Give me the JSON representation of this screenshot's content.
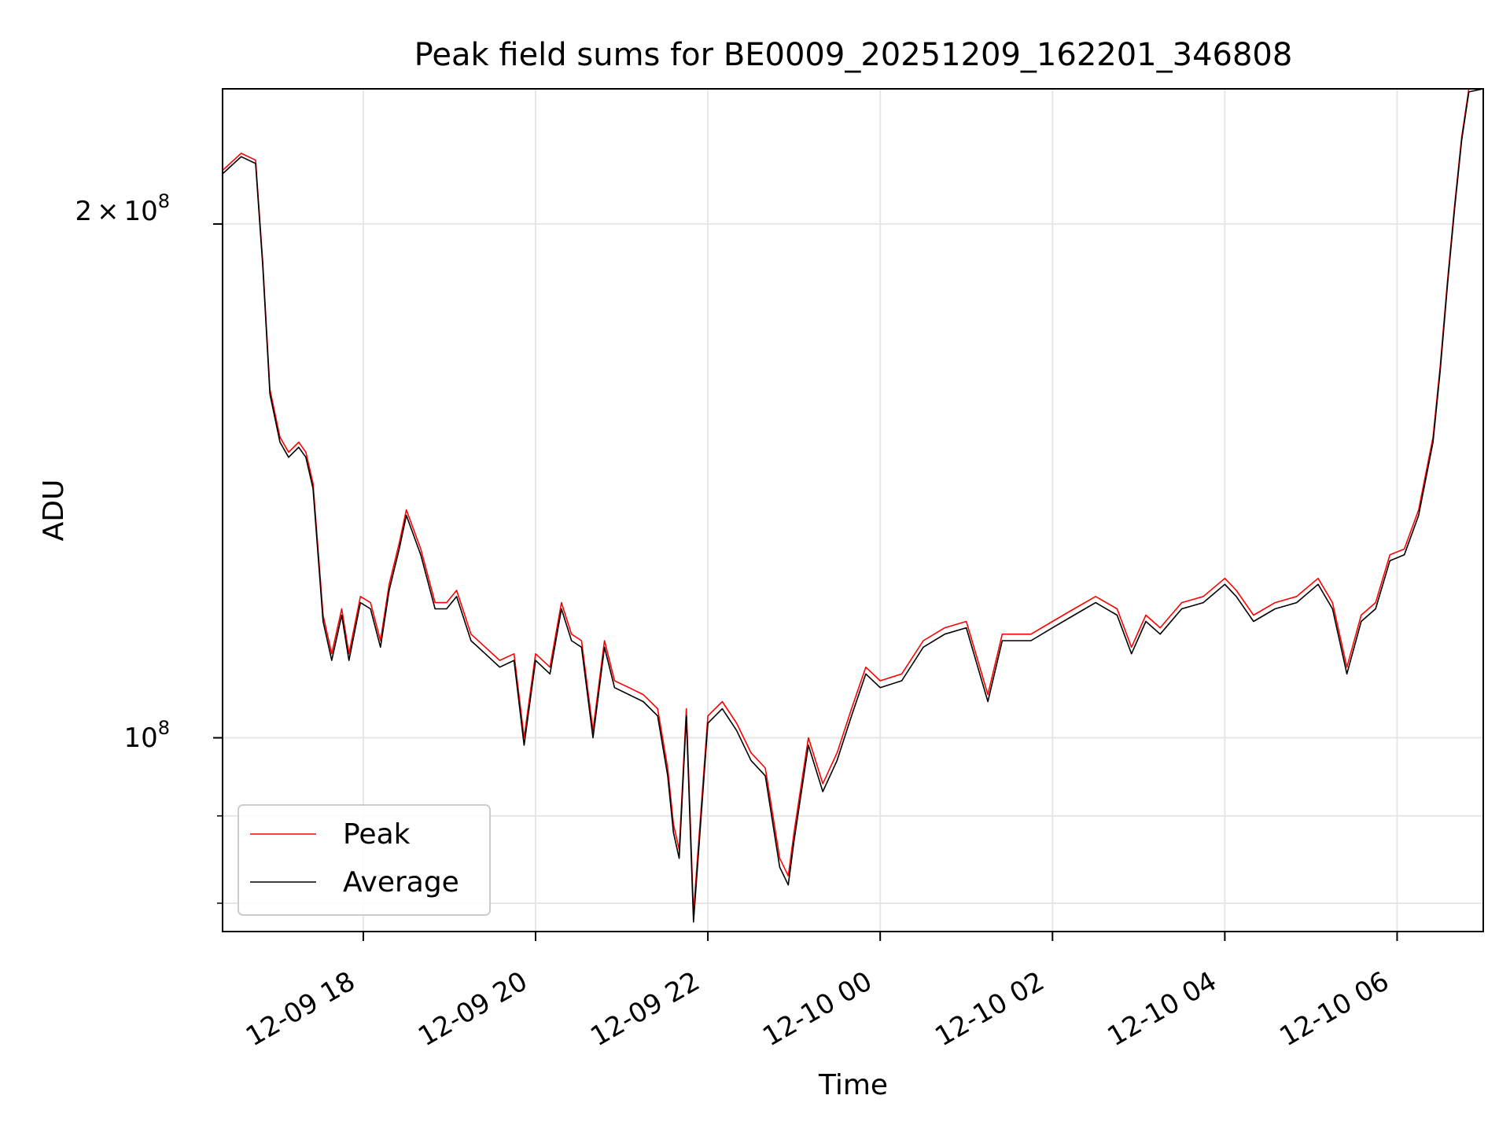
{
  "chart_data": {
    "type": "line",
    "title": "Peak field sums for BE0009_20251209_162201_346808",
    "xlabel": "Time",
    "ylabel": "ADU",
    "y_scale": "log",
    "grid": true,
    "legend_placement": "lower-left",
    "x_range": [
      "2025-12-09 16:22",
      "2025-12-10 07:00"
    ],
    "y_range": [
      77000000,
      240000000
    ],
    "x_ticks": [
      {
        "value": "2025-12-09 18:00",
        "label": "12-09 18"
      },
      {
        "value": "2025-12-09 20:00",
        "label": "12-09 20"
      },
      {
        "value": "2025-12-09 22:00",
        "label": "12-09 22"
      },
      {
        "value": "2025-12-10 00:00",
        "label": "12-10 00"
      },
      {
        "value": "2025-12-10 02:00",
        "label": "12-10 02"
      },
      {
        "value": "2025-12-10 04:00",
        "label": "12-10 04"
      },
      {
        "value": "2025-12-10 06:00",
        "label": "12-10 06"
      }
    ],
    "y_major_ticks": [
      {
        "value": 100000000,
        "base": "10",
        "exponent": "8",
        "label": "10^8"
      },
      {
        "value": 200000000,
        "mantissa": "2",
        "times": "×",
        "base": "10",
        "exponent": "8",
        "label": "2×10^8"
      }
    ],
    "y_minor_ticks": [
      80000000,
      90000000
    ],
    "series": [
      {
        "name": "Peak",
        "color": "#ff0000",
        "x": [
          "2025-12-09 16:22",
          "2025-12-09 16:35",
          "2025-12-09 16:45",
          "2025-12-09 16:50",
          "2025-12-09 16:55",
          "2025-12-09 17:02",
          "2025-12-09 17:08",
          "2025-12-09 17:15",
          "2025-12-09 17:20",
          "2025-12-09 17:25",
          "2025-12-09 17:32",
          "2025-12-09 17:38",
          "2025-12-09 17:45",
          "2025-12-09 17:50",
          "2025-12-09 17:58",
          "2025-12-09 18:05",
          "2025-12-09 18:12",
          "2025-12-09 18:18",
          "2025-12-09 18:25",
          "2025-12-09 18:30",
          "2025-12-09 18:40",
          "2025-12-09 18:50",
          "2025-12-09 18:58",
          "2025-12-09 19:05",
          "2025-12-09 19:15",
          "2025-12-09 19:25",
          "2025-12-09 19:35",
          "2025-12-09 19:45",
          "2025-12-09 19:52",
          "2025-12-09 20:00",
          "2025-12-09 20:10",
          "2025-12-09 20:18",
          "2025-12-09 20:25",
          "2025-12-09 20:32",
          "2025-12-09 20:40",
          "2025-12-09 20:48",
          "2025-12-09 20:55",
          "2025-12-09 21:05",
          "2025-12-09 21:15",
          "2025-12-09 21:25",
          "2025-12-09 21:32",
          "2025-12-09 21:36",
          "2025-12-09 21:40",
          "2025-12-09 21:45",
          "2025-12-09 21:50",
          "2025-12-09 22:00",
          "2025-12-09 22:10",
          "2025-12-09 22:20",
          "2025-12-09 22:30",
          "2025-12-09 22:40",
          "2025-12-09 22:50",
          "2025-12-09 22:56",
          "2025-12-09 23:00",
          "2025-12-09 23:10",
          "2025-12-09 23:20",
          "2025-12-09 23:30",
          "2025-12-09 23:40",
          "2025-12-09 23:50",
          "2025-12-10 00:00",
          "2025-12-10 00:15",
          "2025-12-10 00:30",
          "2025-12-10 00:45",
          "2025-12-10 01:00",
          "2025-12-10 01:15",
          "2025-12-10 01:25",
          "2025-12-10 01:32",
          "2025-12-10 01:45",
          "2025-12-10 02:00",
          "2025-12-10 02:15",
          "2025-12-10 02:30",
          "2025-12-10 02:45",
          "2025-12-10 02:55",
          "2025-12-10 03:05",
          "2025-12-10 03:15",
          "2025-12-10 03:30",
          "2025-12-10 03:45",
          "2025-12-10 04:00",
          "2025-12-10 04:08",
          "2025-12-10 04:20",
          "2025-12-10 04:35",
          "2025-12-10 04:50",
          "2025-12-10 05:05",
          "2025-12-10 05:15",
          "2025-12-10 05:25",
          "2025-12-10 05:35",
          "2025-12-10 05:45",
          "2025-12-10 05:55",
          "2025-12-10 06:05",
          "2025-12-10 06:15",
          "2025-12-10 06:25",
          "2025-12-10 06:30",
          "2025-12-10 06:35",
          "2025-12-10 06:40",
          "2025-12-10 06:45",
          "2025-12-10 06:50",
          "2025-12-10 07:00"
        ],
        "y": [
          215000000,
          220000000,
          218000000,
          190000000,
          160000000,
          150000000,
          147000000,
          149000000,
          147000000,
          141000000,
          118000000,
          112000000,
          119000000,
          112000000,
          121000000,
          120000000,
          114000000,
          123000000,
          130000000,
          136000000,
          129000000,
          120000000,
          120000000,
          122000000,
          115000000,
          113000000,
          111000000,
          112000000,
          100000000,
          112000000,
          110000000,
          120000000,
          115000000,
          114000000,
          101000000,
          114000000,
          108000000,
          107000000,
          106000000,
          104000000,
          96000000,
          89000000,
          86000000,
          104000000,
          79000000,
          103000000,
          105000000,
          102000000,
          98000000,
          96000000,
          85000000,
          83000000,
          88000000,
          100000000,
          94000000,
          98000000,
          104000000,
          110000000,
          108000000,
          109000000,
          114000000,
          116000000,
          117000000,
          106000000,
          115000000,
          115000000,
          115000000,
          117000000,
          119000000,
          121000000,
          119000000,
          113000000,
          118000000,
          116000000,
          120000000,
          121000000,
          124000000,
          122000000,
          118000000,
          120000000,
          121000000,
          124000000,
          120000000,
          110000000,
          118000000,
          120000000,
          128000000,
          129000000,
          136000000,
          150000000,
          165000000,
          185000000,
          205000000,
          225000000,
          240000000,
          240000000
        ]
      },
      {
        "name": "Average",
        "color": "#000000",
        "x": [
          "2025-12-09 16:22",
          "2025-12-09 16:35",
          "2025-12-09 16:45",
          "2025-12-09 16:50",
          "2025-12-09 16:55",
          "2025-12-09 17:02",
          "2025-12-09 17:08",
          "2025-12-09 17:15",
          "2025-12-09 17:20",
          "2025-12-09 17:25",
          "2025-12-09 17:32",
          "2025-12-09 17:38",
          "2025-12-09 17:45",
          "2025-12-09 17:50",
          "2025-12-09 17:58",
          "2025-12-09 18:05",
          "2025-12-09 18:12",
          "2025-12-09 18:18",
          "2025-12-09 18:25",
          "2025-12-09 18:30",
          "2025-12-09 18:40",
          "2025-12-09 18:50",
          "2025-12-09 18:58",
          "2025-12-09 19:05",
          "2025-12-09 19:15",
          "2025-12-09 19:25",
          "2025-12-09 19:35",
          "2025-12-09 19:45",
          "2025-12-09 19:52",
          "2025-12-09 20:00",
          "2025-12-09 20:10",
          "2025-12-09 20:18",
          "2025-12-09 20:25",
          "2025-12-09 20:32",
          "2025-12-09 20:40",
          "2025-12-09 20:48",
          "2025-12-09 20:55",
          "2025-12-09 21:05",
          "2025-12-09 21:15",
          "2025-12-09 21:25",
          "2025-12-09 21:32",
          "2025-12-09 21:36",
          "2025-12-09 21:40",
          "2025-12-09 21:45",
          "2025-12-09 21:50",
          "2025-12-09 22:00",
          "2025-12-09 22:10",
          "2025-12-09 22:20",
          "2025-12-09 22:30",
          "2025-12-09 22:40",
          "2025-12-09 22:50",
          "2025-12-09 22:56",
          "2025-12-09 23:00",
          "2025-12-09 23:10",
          "2025-12-09 23:20",
          "2025-12-09 23:30",
          "2025-12-09 23:40",
          "2025-12-09 23:50",
          "2025-12-10 00:00",
          "2025-12-10 00:15",
          "2025-12-10 00:30",
          "2025-12-10 00:45",
          "2025-12-10 01:00",
          "2025-12-10 01:15",
          "2025-12-10 01:25",
          "2025-12-10 01:32",
          "2025-12-10 01:45",
          "2025-12-10 02:00",
          "2025-12-10 02:15",
          "2025-12-10 02:30",
          "2025-12-10 02:45",
          "2025-12-10 02:55",
          "2025-12-10 03:05",
          "2025-12-10 03:15",
          "2025-12-10 03:30",
          "2025-12-10 03:45",
          "2025-12-10 04:00",
          "2025-12-10 04:08",
          "2025-12-10 04:20",
          "2025-12-10 04:35",
          "2025-12-10 04:50",
          "2025-12-10 05:05",
          "2025-12-10 05:15",
          "2025-12-10 05:25",
          "2025-12-10 05:35",
          "2025-12-10 05:45",
          "2025-12-10 05:55",
          "2025-12-10 06:05",
          "2025-12-10 06:15",
          "2025-12-10 06:25",
          "2025-12-10 06:30",
          "2025-12-10 06:35",
          "2025-12-10 06:40",
          "2025-12-10 06:45",
          "2025-12-10 06:50",
          "2025-12-10 07:00"
        ],
        "y": [
          214000000,
          219000000,
          217000000,
          189000000,
          159000000,
          149000000,
          146000000,
          148000000,
          146000000,
          140000000,
          117000000,
          111000000,
          118000000,
          111000000,
          120000000,
          119000000,
          113000000,
          122000000,
          129000000,
          135000000,
          128000000,
          119000000,
          119000000,
          121000000,
          114000000,
          112000000,
          110000000,
          111000000,
          99000000,
          111000000,
          109000000,
          119000000,
          114000000,
          113000000,
          100000000,
          113000000,
          107000000,
          106000000,
          105000000,
          103000000,
          95000000,
          88000000,
          85000000,
          103000000,
          78000000,
          102000000,
          104000000,
          101000000,
          97000000,
          95000000,
          84000000,
          82000000,
          87000000,
          99000000,
          93000000,
          97000000,
          103000000,
          109000000,
          107000000,
          108000000,
          113000000,
          115000000,
          116000000,
          105000000,
          114000000,
          114000000,
          114000000,
          116000000,
          118000000,
          120000000,
          118000000,
          112000000,
          117000000,
          115000000,
          119000000,
          120000000,
          123000000,
          121000000,
          117000000,
          119000000,
          120000000,
          123000000,
          119000000,
          109000000,
          117000000,
          119000000,
          127000000,
          128000000,
          135000000,
          149000000,
          164000000,
          184000000,
          204000000,
          224000000,
          239000000,
          240000000
        ]
      }
    ]
  }
}
